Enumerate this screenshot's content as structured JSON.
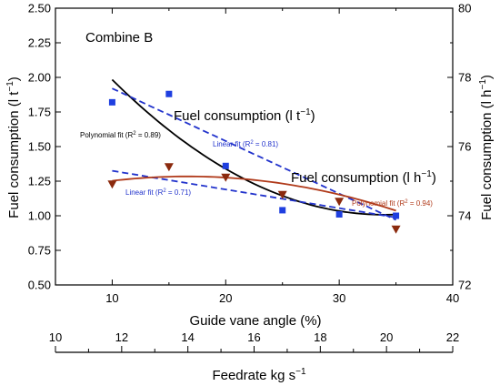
{
  "chart_data": {
    "type": "scatter",
    "annotation_main": "Combine B",
    "x_axis": {
      "label": "Guide vane angle (%)",
      "range": [
        5,
        40
      ],
      "ticks": [
        10,
        20,
        30,
        40
      ]
    },
    "x_axis_secondary": {
      "label": "Feedrate kg s",
      "label_superscript": "−1",
      "range": [
        10,
        22
      ],
      "ticks": [
        10,
        12,
        14,
        16,
        18,
        20,
        22
      ]
    },
    "y_axis_left": {
      "label": "Fuel consumption (l t",
      "label_superscript": "−1",
      "label_close": ")",
      "range": [
        0.5,
        2.5
      ],
      "ticks": [
        "0.50",
        "0.75",
        "1.00",
        "1.25",
        "1.50",
        "1.75",
        "2.00",
        "2.25",
        "2.50"
      ]
    },
    "y_axis_right": {
      "label": "Fuel consumption (l h",
      "label_superscript": "−1",
      "label_close": ")",
      "range": [
        72,
        80
      ],
      "ticks": [
        "72",
        "74",
        "76",
        "78",
        "80"
      ]
    },
    "series": [
      {
        "name": "Fuel consumption (l t",
        "name_superscript": "−1",
        "name_close": ")",
        "axis": "left",
        "marker": "square",
        "color": "#1f3fe0",
        "x": [
          10,
          15,
          20,
          25,
          30,
          35
        ],
        "y": [
          1.82,
          1.88,
          1.36,
          1.04,
          1.01,
          1.0
        ]
      },
      {
        "name": "Fuel consumption (l h",
        "name_superscript": "−1",
        "name_close": ")",
        "axis": "right",
        "marker": "triangle-down",
        "color": "#8b2a0e",
        "x": [
          10,
          15,
          20,
          25,
          30,
          35
        ],
        "y": [
          74.9,
          75.4,
          75.1,
          74.6,
          74.4,
          73.6
        ]
      }
    ],
    "fits": [
      {
        "series": 0,
        "kind": "polynomial",
        "label": "Polynomial fit (R",
        "label_sup": "2",
        "label_tail": " = 0.89)",
        "color": "#000000",
        "style": "solid",
        "coef": [
          2.9686,
          -0.11548,
          0.0017
        ]
      },
      {
        "series": 0,
        "kind": "linear",
        "label": "Linear fit (R",
        "label_sup": "2",
        "label_tail": " = 0.81)",
        "color": "#2233cc",
        "style": "dashed",
        "coef": [
          2.3,
          -0.038
        ]
      },
      {
        "series": 1,
        "kind": "linear",
        "label": "Linear fit (R",
        "label_sup": "2",
        "label_tail": " = 0.71)",
        "color": "#2233cc",
        "style": "dashed",
        "coef": [
          75.84,
          -0.054
        ]
      },
      {
        "series": 1,
        "kind": "polynomial",
        "label": "Polynomial fit (R",
        "label_sup": "2",
        "label_tail": " = 0.94)",
        "color": "#b03a1a",
        "style": "solid",
        "coef": [
          74.333,
          0.0969,
          -0.00292
        ]
      }
    ]
  }
}
